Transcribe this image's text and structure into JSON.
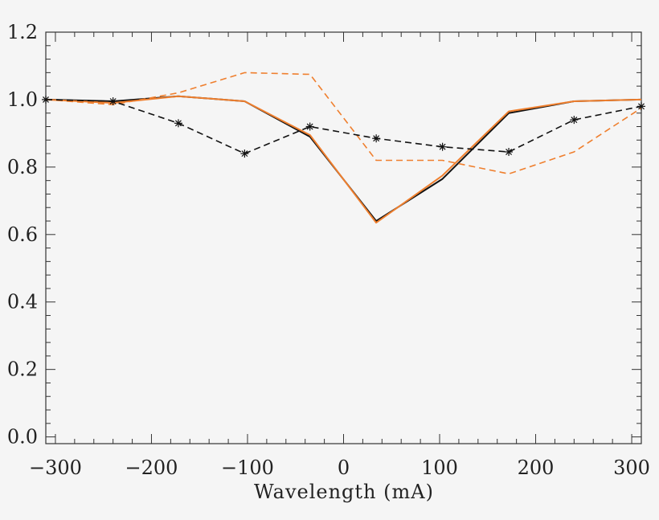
{
  "chart_data": {
    "type": "line",
    "title": "",
    "xlabel": "Wavelength (mA)",
    "ylabel": "",
    "xlim": [
      -310,
      310
    ],
    "ylim": [
      -0.02,
      1.2
    ],
    "x_ticks": [
      -300,
      -200,
      -100,
      0,
      100,
      200,
      300
    ],
    "x_tick_labels": [
      "−300",
      "−200",
      "−100",
      "0",
      "100",
      "200",
      "300"
    ],
    "y_ticks": [
      0.0,
      0.2,
      0.4,
      0.6,
      0.8,
      1.0,
      1.2
    ],
    "y_tick_labels": [
      "0.0",
      "0.2",
      "0.4",
      "0.6",
      "0.8",
      "1.0",
      "1.2"
    ],
    "grid": false,
    "legend": "none",
    "series": [
      {
        "color": "#111111",
        "style": "solid",
        "marker": "none",
        "x": [
          -310,
          -240,
          -172,
          -103,
          -35,
          34,
          103,
          172,
          240,
          310
        ],
        "y": [
          1.0,
          0.995,
          1.01,
          0.995,
          0.89,
          0.64,
          0.765,
          0.96,
          0.995,
          1.0
        ]
      },
      {
        "color": "#ef7f2e",
        "style": "solid",
        "marker": "none",
        "x": [
          -310,
          -240,
          -172,
          -103,
          -35,
          34,
          103,
          172,
          240,
          310
        ],
        "y": [
          1.0,
          0.99,
          1.01,
          0.995,
          0.895,
          0.635,
          0.775,
          0.965,
          0.995,
          1.0
        ]
      },
      {
        "color": "#ef7f2e",
        "style": "dashed",
        "marker": "none",
        "x": [
          -310,
          -240,
          -172,
          -103,
          -35,
          34,
          103,
          172,
          240,
          310
        ],
        "y": [
          1.0,
          0.985,
          1.02,
          1.08,
          1.075,
          0.82,
          0.82,
          0.78,
          0.845,
          0.975
        ]
      },
      {
        "color": "#111111",
        "style": "dashed",
        "marker": "asterisk",
        "x": [
          -310,
          -240,
          -172,
          -103,
          -35,
          34,
          103,
          172,
          240,
          310
        ],
        "y": [
          1.0,
          0.995,
          0.93,
          0.84,
          0.92,
          0.885,
          0.86,
          0.845,
          0.94,
          0.98
        ]
      }
    ]
  }
}
